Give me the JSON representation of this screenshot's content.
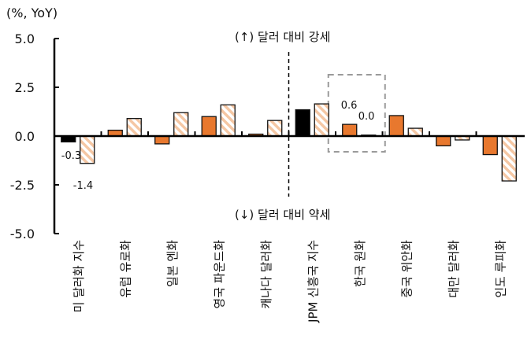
{
  "chart_data": {
    "type": "bar",
    "unit_label": "(%, YoY)",
    "ylim": [
      -5.0,
      5.0
    ],
    "yticks": [
      "5.0",
      "2.5",
      "0.0",
      "-2.5",
      "-5.0"
    ],
    "ytick_values": [
      5.0,
      2.5,
      0.0,
      -2.5,
      -5.0
    ],
    "categories": [
      "미 달러화 지수",
      "유럽 유로화",
      "일본 엔화",
      "영국 파운드화",
      "캐나다 달러화",
      "JPM 신흥국 지수",
      "한국 원화",
      "중국 위안화",
      "대만 달러화",
      "인도 루피화"
    ],
    "series": [
      {
        "style": "solid",
        "values": [
          -0.3,
          0.3,
          -0.4,
          1.0,
          0.1,
          1.35,
          0.6,
          1.05,
          -0.5,
          -0.95
        ]
      },
      {
        "style": "hatched",
        "values": [
          -1.4,
          0.9,
          1.2,
          1.6,
          0.8,
          1.65,
          0.05,
          0.4,
          -0.2,
          -2.3
        ]
      }
    ],
    "data_labels": [
      {
        "category": "미 달러화 지수",
        "series": 0,
        "text": "-0.3"
      },
      {
        "category": "미 달러화 지수",
        "series": 1,
        "text": "-1.4"
      },
      {
        "category": "한국 원화",
        "series": 0,
        "text": "0.6"
      },
      {
        "category": "한국 원화",
        "series": 1,
        "text": "0.0"
      }
    ],
    "annotations": {
      "upper": "(↑) 달러 대비 강세",
      "lower": "(↓) 달러 대비 약세"
    },
    "highlight_category": "한국 원화",
    "divider_after_category": "캐나다 달러화",
    "grid": false,
    "colors": {
      "solid": "#e8782e",
      "solid_black": "#000000",
      "hatch": "#f5c7a4",
      "highlight_box": "#9a9a9a"
    },
    "black_solid_categories": [
      "미 달러화 지수",
      "JPM 신흥국 지수"
    ]
  }
}
